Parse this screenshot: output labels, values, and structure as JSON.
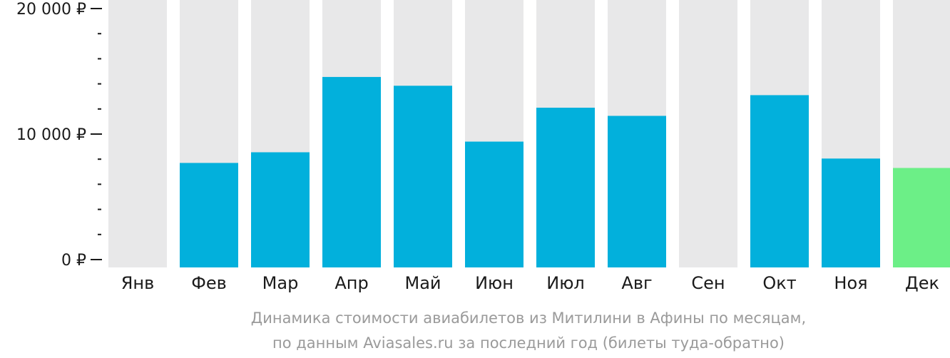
{
  "chart_data": {
    "type": "bar",
    "categories": [
      "Янв",
      "Фев",
      "Мар",
      "Апр",
      "Май",
      "Июн",
      "Июл",
      "Авг",
      "Сен",
      "Окт",
      "Ноя",
      "Дек"
    ],
    "values": [
      null,
      7700,
      8550,
      14550,
      13850,
      9400,
      12100,
      11450,
      null,
      13100,
      8050,
      7300
    ],
    "highlight_index": 11,
    "ylim": [
      0,
      21000
    ],
    "y_ticks": [
      {
        "value": 0,
        "label": "0 ₽"
      },
      {
        "value": 10000,
        "label": "10 000 ₽"
      },
      {
        "value": 20000,
        "label": "20 000 ₽"
      }
    ],
    "minor_tick_step": 2000,
    "caption_lines": [
      "Динамика стоимости авиабилетов из Митилини в Афины по месяцам,",
      "по данным Aviasales.ru за последний год (билеты туда-обратно)"
    ],
    "colors": {
      "bar": "#02b0dc",
      "highlight": "#6cef87",
      "background_bar": "#e8e8e9",
      "axis": "#1a1a1a",
      "caption": "#9a9a9a"
    }
  }
}
